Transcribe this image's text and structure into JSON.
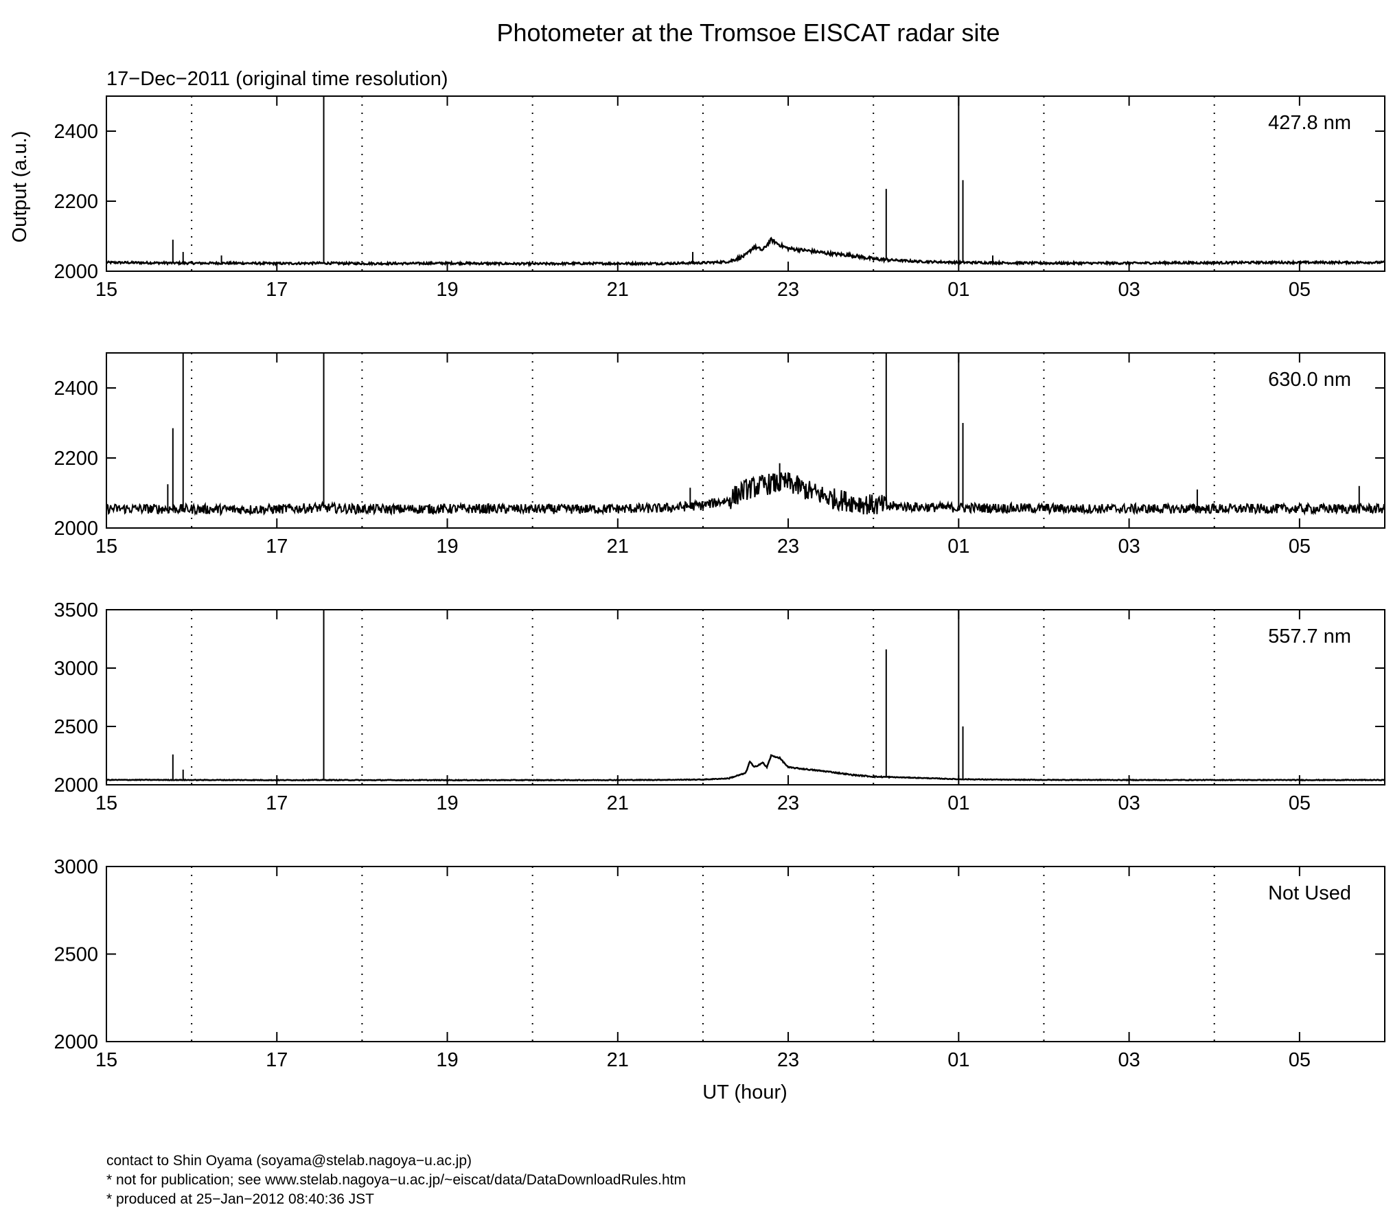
{
  "chart_data": {
    "type": "line",
    "title": "Photometer at the Tromsoe EISCAT radar site",
    "subtitle": "17−Dec−2011 (original time resolution)",
    "xlabel": "UT (hour)",
    "ylabel": "Output (a.u.)",
    "x_tick_labels": [
      "15",
      "17",
      "19",
      "21",
      "23",
      "01",
      "03",
      "05"
    ],
    "xlim_hours_since_15UT": [
      0,
      15
    ],
    "grid": "dotted vertical lines every hour",
    "panels": [
      {
        "name": "427.8 nm",
        "ylim": [
          2000,
          2500
        ],
        "yticks": [
          2000,
          2200,
          2400
        ],
        "points": [
          [
            15.0,
            2025
          ],
          [
            15.5,
            2024
          ],
          [
            16.0,
            2023
          ],
          [
            16.5,
            2023
          ],
          [
            17.0,
            2022
          ],
          [
            17.5,
            2023
          ],
          [
            18.0,
            2022
          ],
          [
            18.5,
            2022
          ],
          [
            19.0,
            2023
          ],
          [
            19.5,
            2022
          ],
          [
            20.0,
            2021
          ],
          [
            20.5,
            2022
          ],
          [
            21.0,
            2022
          ],
          [
            21.5,
            2022
          ],
          [
            22.0,
            2024
          ],
          [
            22.3,
            2027
          ],
          [
            22.5,
            2045
          ],
          [
            22.6,
            2070
          ],
          [
            22.7,
            2060
          ],
          [
            22.8,
            2090
          ],
          [
            22.9,
            2075
          ],
          [
            23.0,
            2065
          ],
          [
            23.25,
            2058
          ],
          [
            23.5,
            2050
          ],
          [
            23.75,
            2045
          ],
          [
            24.0,
            2035
          ],
          [
            24.5,
            2028
          ],
          [
            25.0,
            2025
          ],
          [
            25.5,
            2024
          ],
          [
            26.0,
            2023
          ],
          [
            26.5,
            2023
          ],
          [
            27.0,
            2023
          ],
          [
            27.5,
            2024
          ],
          [
            28.0,
            2024
          ],
          [
            28.5,
            2025
          ],
          [
            29.0,
            2025
          ],
          [
            29.5,
            2025
          ],
          [
            30.0,
            2025
          ]
        ],
        "spikes": [
          [
            15.78,
            2090
          ],
          [
            15.9,
            2055
          ],
          [
            16.35,
            2045
          ],
          [
            17.55,
            2500
          ],
          [
            21.88,
            2055
          ],
          [
            24.15,
            2235
          ],
          [
            25.0,
            2500
          ],
          [
            25.05,
            2260
          ],
          [
            25.4,
            2045
          ]
        ]
      },
      {
        "name": "630.0 nm",
        "ylim": [
          2000,
          2500
        ],
        "yticks": [
          2000,
          2200,
          2400
        ],
        "points": [
          [
            15.0,
            2055
          ],
          [
            15.5,
            2055
          ],
          [
            16.0,
            2054
          ],
          [
            16.5,
            2053
          ],
          [
            17.0,
            2054
          ],
          [
            17.5,
            2058
          ],
          [
            18.0,
            2054
          ],
          [
            18.5,
            2054
          ],
          [
            19.0,
            2055
          ],
          [
            19.5,
            2055
          ],
          [
            20.0,
            2054
          ],
          [
            20.5,
            2054
          ],
          [
            21.0,
            2055
          ],
          [
            21.5,
            2056
          ],
          [
            22.0,
            2065
          ],
          [
            22.3,
            2080
          ],
          [
            22.5,
            2110
          ],
          [
            22.75,
            2125
          ],
          [
            23.0,
            2130
          ],
          [
            23.25,
            2105
          ],
          [
            23.5,
            2085
          ],
          [
            23.75,
            2075
          ],
          [
            24.0,
            2065
          ],
          [
            24.5,
            2060
          ],
          [
            25.0,
            2058
          ],
          [
            25.5,
            2057
          ],
          [
            26.0,
            2056
          ],
          [
            26.5,
            2055
          ],
          [
            27.0,
            2055
          ],
          [
            27.5,
            2055
          ],
          [
            28.0,
            2055
          ],
          [
            28.5,
            2055
          ],
          [
            29.0,
            2055
          ],
          [
            29.5,
            2055
          ],
          [
            30.0,
            2055
          ]
        ],
        "spikes": [
          [
            15.72,
            2125
          ],
          [
            15.78,
            2285
          ],
          [
            15.9,
            2500
          ],
          [
            17.55,
            2500
          ],
          [
            21.85,
            2115
          ],
          [
            22.9,
            2185
          ],
          [
            24.15,
            2500
          ],
          [
            25.0,
            2500
          ],
          [
            25.05,
            2300
          ],
          [
            27.8,
            2110
          ],
          [
            29.7,
            2120
          ]
        ]
      },
      {
        "name": "557.7 nm",
        "ylim": [
          2000,
          3500
        ],
        "yticks": [
          2000,
          2500,
          3000,
          3500
        ],
        "points": [
          [
            15.0,
            2042
          ],
          [
            15.5,
            2042
          ],
          [
            16.0,
            2041
          ],
          [
            16.5,
            2041
          ],
          [
            17.0,
            2040
          ],
          [
            17.5,
            2041
          ],
          [
            18.0,
            2040
          ],
          [
            18.5,
            2040
          ],
          [
            19.0,
            2040
          ],
          [
            19.5,
            2040
          ],
          [
            20.0,
            2040
          ],
          [
            20.5,
            2040
          ],
          [
            21.0,
            2041
          ],
          [
            21.5,
            2042
          ],
          [
            22.0,
            2045
          ],
          [
            22.3,
            2055
          ],
          [
            22.5,
            2100
          ],
          [
            22.55,
            2200
          ],
          [
            22.6,
            2150
          ],
          [
            22.7,
            2190
          ],
          [
            22.75,
            2150
          ],
          [
            22.8,
            2250
          ],
          [
            22.9,
            2230
          ],
          [
            23.0,
            2150
          ],
          [
            23.25,
            2130
          ],
          [
            23.5,
            2110
          ],
          [
            23.75,
            2085
          ],
          [
            24.0,
            2070
          ],
          [
            24.5,
            2060
          ],
          [
            25.0,
            2048
          ],
          [
            25.5,
            2044
          ],
          [
            26.0,
            2042
          ],
          [
            26.5,
            2042
          ],
          [
            27.0,
            2041
          ],
          [
            27.5,
            2041
          ],
          [
            28.0,
            2041
          ],
          [
            28.5,
            2041
          ],
          [
            29.0,
            2041
          ],
          [
            29.5,
            2041
          ],
          [
            30.0,
            2041
          ]
        ],
        "spikes": [
          [
            15.78,
            2260
          ],
          [
            15.9,
            2130
          ],
          [
            17.55,
            3500
          ],
          [
            24.15,
            3160
          ],
          [
            25.0,
            3500
          ],
          [
            25.05,
            2500
          ]
        ]
      },
      {
        "name": "Not Used",
        "ylim": [
          2000,
          3000
        ],
        "yticks": [
          2000,
          2500,
          3000
        ],
        "points": [],
        "spikes": []
      }
    ]
  },
  "footer": {
    "contact": "contact to Shin Oyama (soyama@stelab.nagoya−u.ac.jp)",
    "rules": "* not for publication; see www.stelab.nagoya−u.ac.jp/~eiscat/data/DataDownloadRules.htm",
    "produced": "* produced at 25−Jan−2012 08:40:36 JST"
  }
}
